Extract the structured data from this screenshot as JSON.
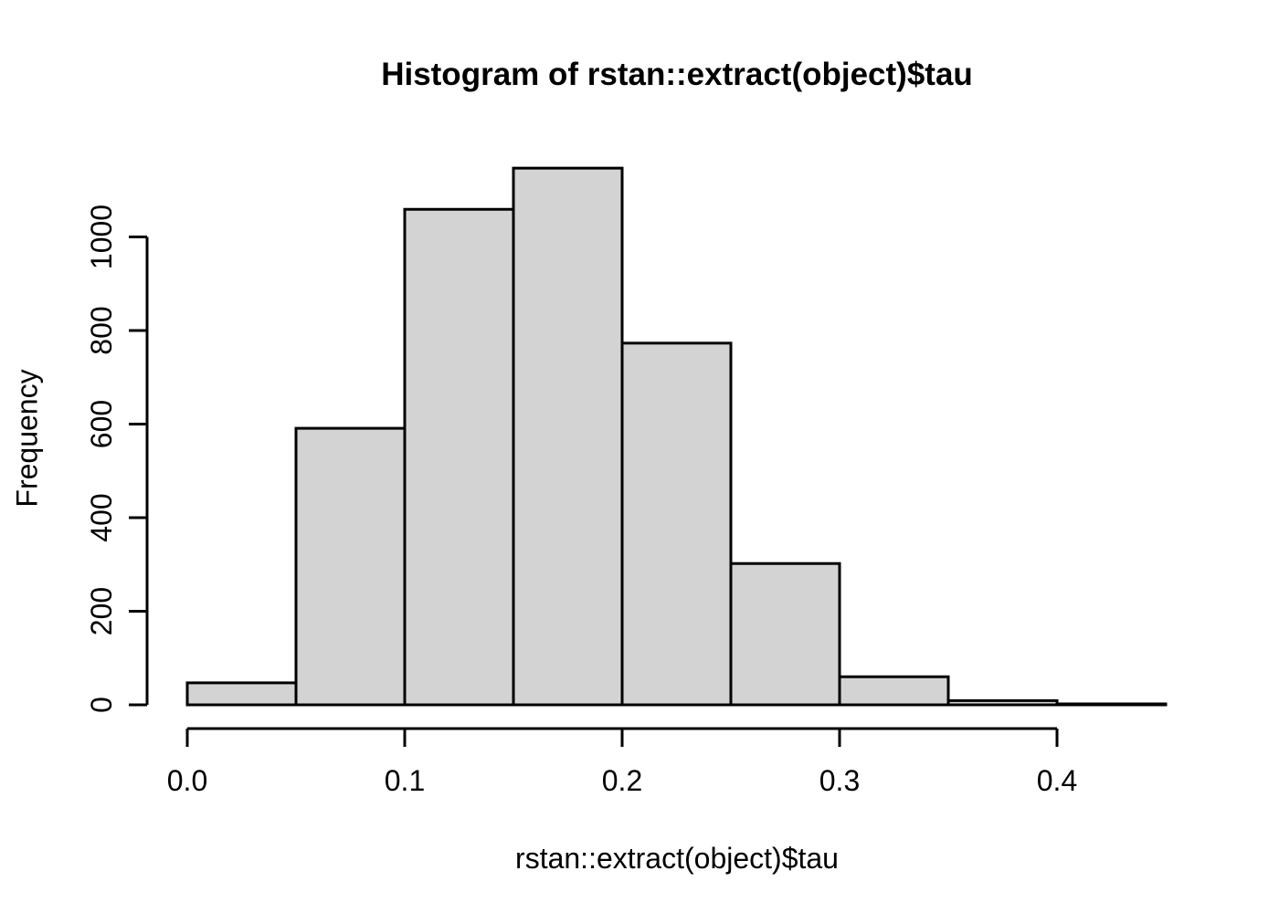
{
  "title": "Histogram of rstan::extract(object)$tau",
  "x_axis_label": "rstan::extract(object)$tau",
  "y_axis_label": "Frequency",
  "chart_data": {
    "type": "bar",
    "subtype": "histogram",
    "title": "Histogram of rstan::extract(object)$tau",
    "xlabel": "rstan::extract(object)$tau",
    "ylabel": "Frequency",
    "bin_edges": [
      0.0,
      0.05,
      0.1,
      0.15,
      0.2,
      0.25,
      0.3,
      0.35,
      0.4,
      0.45
    ],
    "counts": [
      47,
      591,
      1059,
      1147,
      773,
      302,
      60,
      9,
      2
    ],
    "x_ticks": [
      0.0,
      0.1,
      0.2,
      0.3,
      0.4
    ],
    "x_tick_labels": [
      "0.0",
      "0.1",
      "0.2",
      "0.3",
      "0.4"
    ],
    "y_ticks": [
      0,
      200,
      400,
      600,
      800,
      1000
    ],
    "y_tick_labels": [
      "0",
      "200",
      "400",
      "600",
      "800",
      "1000"
    ],
    "xlim": [
      0.0,
      0.45
    ],
    "ylim": [
      0,
      1000
    ],
    "grid": false,
    "legend": false,
    "bar_fill_color": "#d3d3d3",
    "bar_stroke_color": "#000000",
    "axis_color": "#000000",
    "background_color": "#ffffff"
  }
}
